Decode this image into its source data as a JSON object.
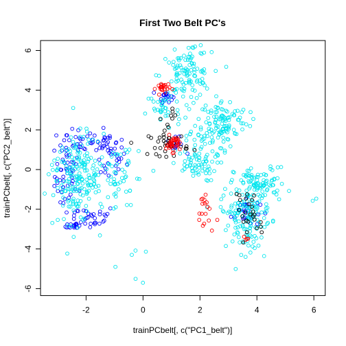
{
  "chart_data": {
    "type": "scatter",
    "title": "First Two Belt PC's",
    "xlabel": "trainPCbelt[, c(\"PC1_belt\")]",
    "ylabel": "trainPCbelt[, c(\"PC2_belt\")]",
    "xlim": [
      -3.6,
      6.4
    ],
    "ylim": [
      -6.35,
      6.5
    ],
    "x_ticks": [
      -2,
      0,
      2,
      4,
      6
    ],
    "y_ticks": [
      -6,
      -4,
      -2,
      0,
      2,
      4,
      6
    ],
    "grid": false,
    "legend": "none",
    "colors": {
      "cyan": "#00e5ee",
      "blue": "#0000ff",
      "red": "#ff0000",
      "black": "#000000"
    },
    "clusters": [
      {
        "color": "blue",
        "cx": -2.6,
        "cy": -0.3,
        "sx": 0.25,
        "sy": 1.0,
        "n": 55
      },
      {
        "color": "blue",
        "cx": -1.2,
        "cy": 0.6,
        "sx": 0.3,
        "sy": 0.6,
        "n": 35
      },
      {
        "color": "blue",
        "cx": -1.9,
        "cy": 1.4,
        "sx": 0.5,
        "sy": 0.3,
        "n": 35
      },
      {
        "color": "blue",
        "cx": -1.9,
        "cy": -2.4,
        "sx": 0.5,
        "sy": 0.3,
        "n": 30
      },
      {
        "color": "blue",
        "cx": -2.4,
        "cy": -2.8,
        "sx": 0.15,
        "sy": 0.1,
        "n": 15
      },
      {
        "color": "cyan",
        "cx": -2.3,
        "cy": -0.5,
        "sx": 0.35,
        "sy": 1.1,
        "n": 140
      },
      {
        "color": "cyan",
        "cx": -1.6,
        "cy": -0.4,
        "sx": 0.7,
        "sy": 0.9,
        "n": 70
      },
      {
        "color": "cyan",
        "cx": -0.6,
        "cy": -0.6,
        "sx": 0.4,
        "sy": 0.8,
        "n": 25
      },
      {
        "color": "cyan",
        "cx": -3.0,
        "cy": 0.4,
        "sx": 0.2,
        "sy": 0.3,
        "n": 10
      },
      {
        "color": "cyan",
        "cx": -0.3,
        "cy": -4.8,
        "sx": 0.3,
        "sy": 0.5,
        "n": 6
      },
      {
        "color": "cyan",
        "cx": 1.5,
        "cy": 4.7,
        "sx": 0.45,
        "sy": 0.6,
        "n": 110
      },
      {
        "color": "cyan",
        "cx": 0.7,
        "cy": 3.0,
        "sx": 0.3,
        "sy": 0.5,
        "n": 30
      },
      {
        "color": "cyan",
        "cx": 1.9,
        "cy": 6.0,
        "sx": 0.3,
        "sy": 0.2,
        "n": 8
      },
      {
        "color": "cyan",
        "cx": 2.8,
        "cy": 2.5,
        "sx": 0.45,
        "sy": 0.5,
        "n": 100
      },
      {
        "color": "cyan",
        "cx": 1.8,
        "cy": 0.2,
        "sx": 0.4,
        "sy": 0.4,
        "n": 60
      },
      {
        "color": "cyan",
        "cx": 2.3,
        "cy": 1.5,
        "sx": 0.4,
        "sy": 0.5,
        "n": 40
      },
      {
        "color": "cyan",
        "cx": 4.1,
        "cy": -0.7,
        "sx": 0.45,
        "sy": 0.4,
        "n": 90
      },
      {
        "color": "cyan",
        "cx": 3.6,
        "cy": -2.1,
        "sx": 0.45,
        "sy": 0.5,
        "n": 110
      },
      {
        "color": "cyan",
        "cx": 3.8,
        "cy": -3.6,
        "sx": 0.4,
        "sy": 0.5,
        "n": 35
      },
      {
        "color": "cyan",
        "cx": 6.1,
        "cy": -1.4,
        "sx": 0.05,
        "sy": 0.1,
        "n": 2
      },
      {
        "color": "blue",
        "cx": 0.8,
        "cy": 3.7,
        "sx": 0.12,
        "sy": 0.15,
        "n": 20
      },
      {
        "color": "blue",
        "cx": 1.15,
        "cy": 1.2,
        "sx": 0.15,
        "sy": 0.2,
        "n": 15
      },
      {
        "color": "blue",
        "cx": 3.6,
        "cy": -2.1,
        "sx": 0.25,
        "sy": 0.4,
        "n": 30
      },
      {
        "color": "red",
        "cx": 0.7,
        "cy": 4.1,
        "sx": 0.12,
        "sy": 0.15,
        "n": 25
      },
      {
        "color": "red",
        "cx": 1.05,
        "cy": 1.3,
        "sx": 0.12,
        "sy": 0.2,
        "n": 35
      },
      {
        "color": "red",
        "cx": 2.2,
        "cy": -2.1,
        "sx": 0.15,
        "sy": 0.6,
        "n": 18
      },
      {
        "color": "red",
        "cx": 3.6,
        "cy": -3.5,
        "sx": 0.05,
        "sy": 0.1,
        "n": 4
      },
      {
        "color": "black",
        "cx": 0.9,
        "cy": 1.3,
        "sx": 0.35,
        "sy": 0.3,
        "n": 35
      },
      {
        "color": "black",
        "cx": 0.8,
        "cy": 2.6,
        "sx": 0.2,
        "sy": 0.3,
        "n": 8
      },
      {
        "color": "black",
        "cx": 3.9,
        "cy": -2.5,
        "sx": 0.3,
        "sy": 0.4,
        "n": 20
      },
      {
        "color": "black",
        "cx": 3.5,
        "cy": -1.3,
        "sx": 0.2,
        "sy": 0.2,
        "n": 6
      }
    ]
  }
}
